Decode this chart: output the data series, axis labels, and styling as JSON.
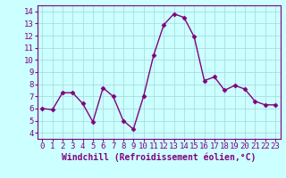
{
  "x": [
    0,
    1,
    2,
    3,
    4,
    5,
    6,
    7,
    8,
    9,
    10,
    11,
    12,
    13,
    14,
    15,
    16,
    17,
    18,
    19,
    20,
    21,
    22,
    23
  ],
  "y": [
    6.0,
    5.9,
    7.3,
    7.3,
    6.4,
    4.9,
    7.7,
    7.0,
    5.0,
    4.3,
    7.0,
    10.4,
    12.9,
    13.8,
    13.5,
    11.9,
    8.3,
    8.6,
    7.5,
    7.9,
    7.6,
    6.6,
    6.3,
    6.3
  ],
  "line_color": "#800080",
  "marker": "D",
  "marker_size": 2.5,
  "linewidth": 1.0,
  "bg_color": "#ccffff",
  "grid_color": "#aadddd",
  "xlabel": "Windchill (Refroidissement éolien,°C)",
  "xlabel_fontsize": 7,
  "tick_fontsize": 6.5,
  "xlim": [
    -0.5,
    23.5
  ],
  "ylim": [
    3.5,
    14.5
  ],
  "yticks": [
    4,
    5,
    6,
    7,
    8,
    9,
    10,
    11,
    12,
    13,
    14
  ],
  "xticks": [
    0,
    1,
    2,
    3,
    4,
    5,
    6,
    7,
    8,
    9,
    10,
    11,
    12,
    13,
    14,
    15,
    16,
    17,
    18,
    19,
    20,
    21,
    22,
    23
  ],
  "spine_color": "#800080",
  "bottom_bar_color": "#800080"
}
